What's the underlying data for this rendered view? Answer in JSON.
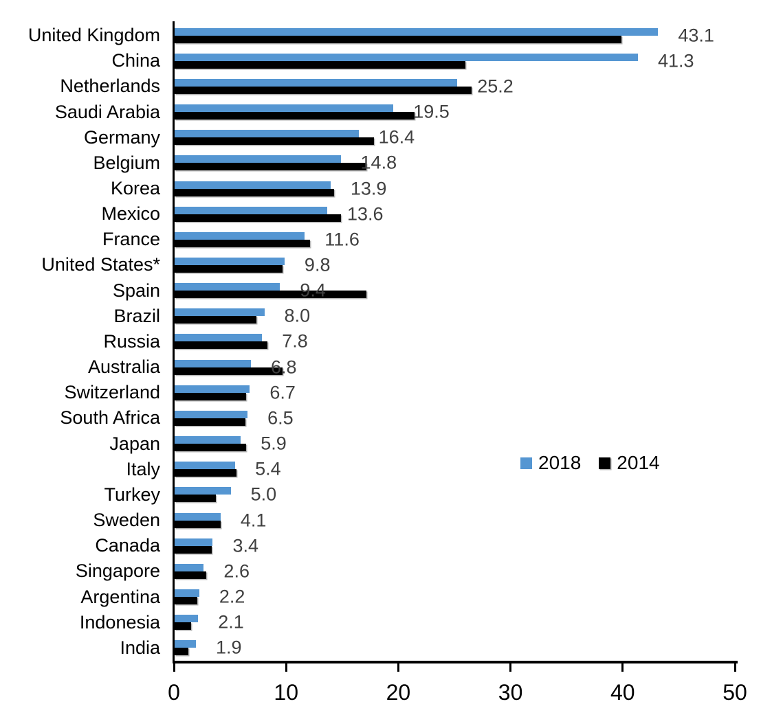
{
  "chart_data": {
    "type": "bar",
    "orientation": "horizontal",
    "title": "",
    "xlabel": "",
    "ylabel": "",
    "xlim": [
      0,
      50
    ],
    "x_ticks": [
      "0",
      "10",
      "20",
      "30",
      "40",
      "50"
    ],
    "grid": false,
    "categories": [
      "United Kingdom",
      "China",
      "Netherlands",
      "Saudi Arabia",
      "Germany",
      "Belgium",
      "Korea",
      "Mexico",
      "France",
      "United States*",
      "Spain",
      "Brazil",
      "Russia",
      "Australia",
      "Switzerland",
      "South Africa",
      "Japan",
      "Italy",
      "Turkey",
      "Sweden",
      "Canada",
      "Singapore",
      "Argentina",
      "Indonesia",
      "India"
    ],
    "series": [
      {
        "name": "2018",
        "color": "#5596D2",
        "values": [
          43.1,
          41.3,
          25.2,
          19.5,
          16.4,
          14.8,
          13.9,
          13.6,
          11.6,
          9.8,
          9.4,
          8.0,
          7.8,
          6.8,
          6.7,
          6.5,
          5.9,
          5.4,
          5.0,
          4.1,
          3.4,
          2.6,
          2.2,
          2.1,
          1.9
        ],
        "data_labels": [
          "43.1",
          "41.3",
          "25.2",
          "19.5",
          "16.4",
          "14.8",
          "13.9",
          "13.6",
          "11.6",
          "9.8",
          "9.4",
          "8.0",
          "7.8",
          "6.8",
          "6.7",
          "6.5",
          "5.9",
          "5.4",
          "5.0",
          "4.1",
          "3.4",
          "2.6",
          "2.2",
          "2.1",
          "1.9"
        ]
      },
      {
        "name": "2014",
        "color": "#000000",
        "values": [
          39.8,
          25.9,
          26.5,
          21.4,
          17.8,
          17.1,
          14.2,
          14.8,
          12.1,
          9.6,
          17.1,
          7.3,
          8.3,
          9.6,
          6.4,
          6.3,
          6.4,
          5.5,
          3.7,
          4.1,
          3.3,
          2.8,
          2.0,
          1.5,
          1.2
        ]
      }
    ],
    "legend": {
      "position": "right-middle",
      "entries": [
        {
          "label": "2018",
          "color": "#5596D2"
        },
        {
          "label": "2014",
          "color": "#000000"
        }
      ]
    },
    "colors": {
      "value_label_text": "#404040",
      "axis": "#000000",
      "category_text": "#000000"
    }
  }
}
